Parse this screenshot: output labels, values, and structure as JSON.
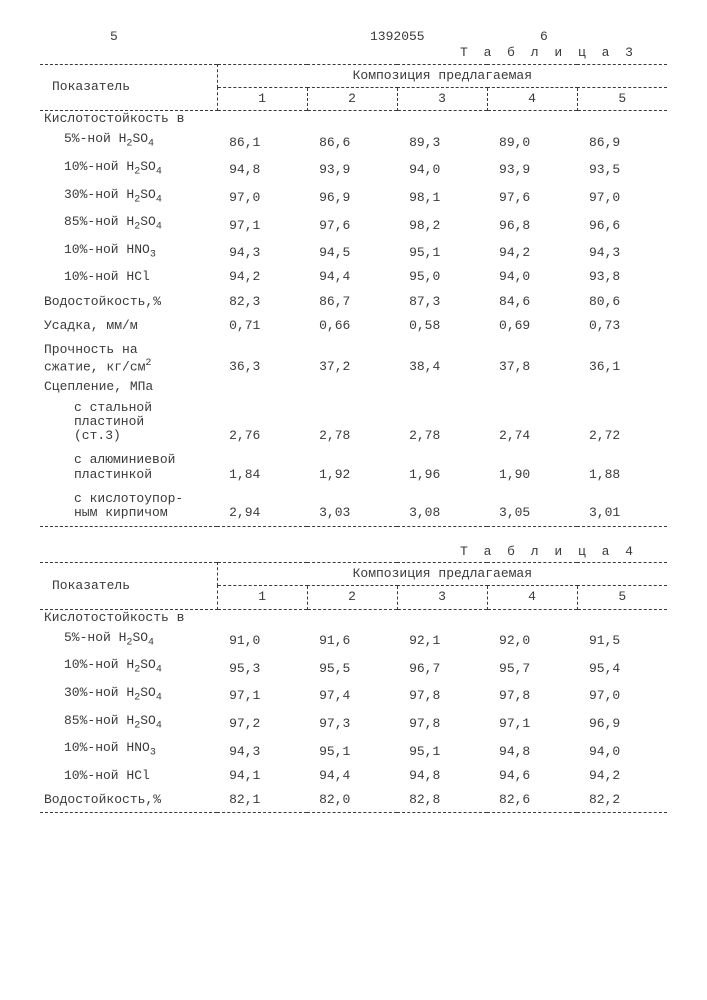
{
  "header": {
    "colL": "5",
    "docnum": "1392055",
    "colR": "6"
  },
  "table3": {
    "title": "Т а б л и ц а 3",
    "col_label": "Показатель",
    "group_label": "Композиция предлагаемая",
    "cols": [
      "1",
      "2",
      "3",
      "4",
      "5"
    ],
    "rows": [
      {
        "label": "Кислотостойкость в",
        "vals": [
          "",
          "",
          "",
          "",
          ""
        ]
      },
      {
        "label": "5%-ной H₂SO₄",
        "indent": 1,
        "vals": [
          "86,1",
          "86,6",
          "89,3",
          "89,0",
          "86,9"
        ]
      },
      {
        "label": "10%-ной H₂SO₄",
        "indent": 1,
        "vals": [
          "94,8",
          "93,9",
          "94,0",
          "93,9",
          "93,5"
        ]
      },
      {
        "label": "30%-ной H₂SO₄",
        "indent": 1,
        "vals": [
          "97,0",
          "96,9",
          "98,1",
          "97,6",
          "97,0"
        ]
      },
      {
        "label": "85%-ной H₂SO₄",
        "indent": 1,
        "vals": [
          "97,1",
          "97,6",
          "98,2",
          "96,8",
          "96,6"
        ]
      },
      {
        "label": "10%-ной HNO₃",
        "indent": 1,
        "vals": [
          "94,3",
          "94,5",
          "95,1",
          "94,2",
          "94,3"
        ]
      },
      {
        "label": "10%-ной HCl",
        "indent": 1,
        "vals": [
          "94,2",
          "94,4",
          "95,0",
          "94,0",
          "93,8"
        ]
      },
      {
        "label": "Водостойкость,%",
        "vals": [
          "82,3",
          "86,7",
          "87,3",
          "84,6",
          "80,6"
        ]
      },
      {
        "label": "Усадка, мм/м",
        "vals": [
          "0,71",
          "0,66",
          "0,58",
          "0,69",
          "0,73"
        ]
      },
      {
        "label": "Прочность на\nсжатие, кг/см²",
        "vals": [
          "36,3",
          "37,2",
          "38,4",
          "37,8",
          "36,1"
        ]
      },
      {
        "label": "Сцепление, МПа",
        "vals": [
          "",
          "",
          "",
          "",
          ""
        ]
      },
      {
        "label": "с стальной\nпластиной\n(ст.3)",
        "indent": 2,
        "vals": [
          "2,76",
          "2,78",
          "2,78",
          "2,74",
          "2,72"
        ]
      },
      {
        "label": "с алюминиевой\nпластинкой",
        "indent": 2,
        "vals": [
          "1,84",
          "1,92",
          "1,96",
          "1,90",
          "1,88"
        ]
      },
      {
        "label": "с кислотоупор-\nным кирпичом",
        "indent": 2,
        "vals": [
          "2,94",
          "3,03",
          "3,08",
          "3,05",
          "3,01"
        ]
      }
    ]
  },
  "table4": {
    "title": "Т а б л и ц а 4",
    "col_label": "Показатель",
    "group_label": "Композиция предлагаемая",
    "cols": [
      "1",
      "2",
      "3",
      "4",
      "5"
    ],
    "rows": [
      {
        "label": "Кислотостойкость в",
        "vals": [
          "",
          "",
          "",
          "",
          ""
        ]
      },
      {
        "label": "5%-ной H₂SO₄",
        "indent": 1,
        "vals": [
          "91,0",
          "91,6",
          "92,1",
          "92,0",
          "91,5"
        ]
      },
      {
        "label": "10%-ной H₂SO₄",
        "indent": 1,
        "vals": [
          "95,3",
          "95,5",
          "96,7",
          "95,7",
          "95,4"
        ]
      },
      {
        "label": "30%-ной H₂SO₄",
        "indent": 1,
        "vals": [
          "97,1",
          "97,4",
          "97,8",
          "97,8",
          "97,0"
        ]
      },
      {
        "label": "85%-ной H₂SO₄",
        "indent": 1,
        "vals": [
          "97,2",
          "97,3",
          "97,8",
          "97,1",
          "96,9"
        ]
      },
      {
        "label": "10%-ной HNO₃",
        "indent": 1,
        "vals": [
          "94,3",
          "95,1",
          "95,1",
          "94,8",
          "94,0"
        ]
      },
      {
        "label": "10%-ной HCl",
        "indent": 1,
        "vals": [
          "94,1",
          "94,4",
          "94,8",
          "94,6",
          "94,2"
        ]
      },
      {
        "label": "Водостойкость,%",
        "vals": [
          "82,1",
          "82,0",
          "82,8",
          "82,6",
          "82,2"
        ]
      }
    ]
  }
}
